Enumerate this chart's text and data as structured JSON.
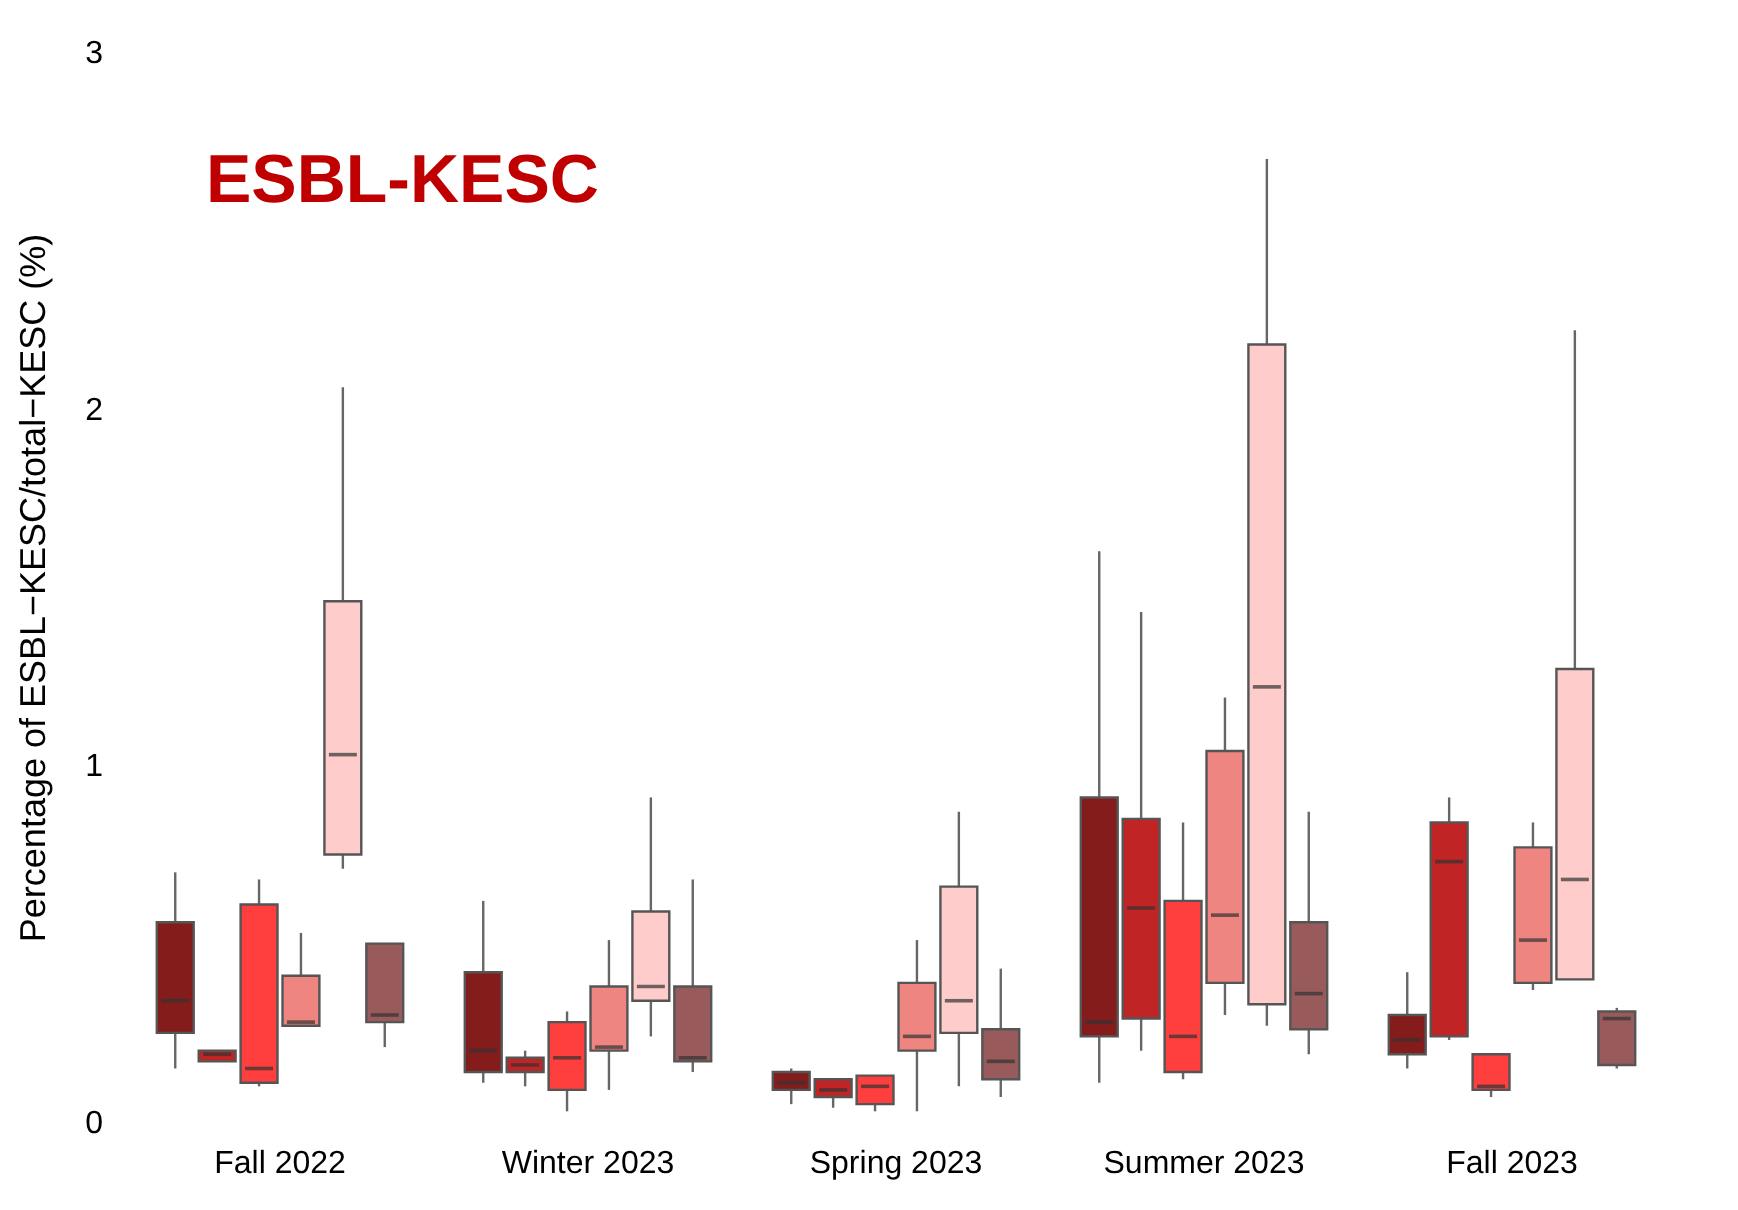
{
  "chart_data": {
    "type": "box",
    "title": "ESBL-KESC",
    "ylabel": "Percentage of ESBL−KESC/total−KESC (%)",
    "categories": [
      "Fall 2022",
      "Winter 2023",
      "Spring 2023",
      "Summer 2023",
      "Fall 2023"
    ],
    "ylim": [
      0,
      3
    ],
    "yticks": [
      0,
      1,
      2,
      3
    ],
    "series": [
      {
        "color": "#841c1c",
        "boxes": [
          {
            "low": 0.15,
            "q1": 0.25,
            "median": 0.34,
            "q3": 0.56,
            "high": 0.7
          },
          {
            "low": 0.11,
            "q1": 0.14,
            "median": 0.2,
            "q3": 0.42,
            "high": 0.62
          },
          {
            "low": 0.05,
            "q1": 0.09,
            "median": 0.11,
            "q3": 0.14,
            "high": 0.15
          },
          {
            "low": 0.11,
            "q1": 0.24,
            "median": 0.28,
            "q3": 0.91,
            "high": 1.6
          },
          {
            "low": 0.15,
            "q1": 0.19,
            "median": 0.23,
            "q3": 0.3,
            "high": 0.42
          }
        ]
      },
      {
        "color": "#c02424",
        "boxes": [
          {
            "low": 0.17,
            "q1": 0.17,
            "median": 0.19,
            "q3": 0.2,
            "high": 0.2
          },
          {
            "low": 0.1,
            "q1": 0.14,
            "median": 0.16,
            "q3": 0.18,
            "high": 0.2
          },
          {
            "low": 0.04,
            "q1": 0.07,
            "median": 0.09,
            "q3": 0.12,
            "high": 0.12
          },
          {
            "low": 0.2,
            "q1": 0.29,
            "median": 0.6,
            "q3": 0.85,
            "high": 1.43
          },
          {
            "low": 0.23,
            "q1": 0.24,
            "median": 0.73,
            "q3": 0.84,
            "high": 0.91
          }
        ]
      },
      {
        "color": "#ff3e3e",
        "boxes": [
          {
            "low": 0.1,
            "q1": 0.11,
            "median": 0.15,
            "q3": 0.61,
            "high": 0.68
          },
          {
            "low": 0.03,
            "q1": 0.09,
            "median": 0.18,
            "q3": 0.28,
            "high": 0.31
          },
          {
            "low": 0.03,
            "q1": 0.05,
            "median": 0.1,
            "q3": 0.13,
            "high": 0.13
          },
          {
            "low": 0.12,
            "q1": 0.14,
            "median": 0.24,
            "q3": 0.62,
            "high": 0.84
          },
          {
            "low": 0.07,
            "q1": 0.09,
            "median": 0.1,
            "q3": 0.19,
            "high": 0.19
          }
        ]
      },
      {
        "color": "#ee8580",
        "boxes": [
          {
            "low": 0.27,
            "q1": 0.27,
            "median": 0.28,
            "q3": 0.41,
            "high": 0.53
          },
          {
            "low": 0.09,
            "q1": 0.2,
            "median": 0.21,
            "q3": 0.38,
            "high": 0.51
          },
          {
            "low": 0.03,
            "q1": 0.2,
            "median": 0.24,
            "q3": 0.39,
            "high": 0.51
          },
          {
            "low": 0.3,
            "q1": 0.39,
            "median": 0.58,
            "q3": 1.04,
            "high": 1.19
          },
          {
            "low": 0.37,
            "q1": 0.39,
            "median": 0.51,
            "q3": 0.77,
            "high": 0.84
          }
        ]
      },
      {
        "color": "#ffcccc",
        "boxes": [
          {
            "low": 0.71,
            "q1": 0.75,
            "median": 1.03,
            "q3": 1.46,
            "high": 2.06
          },
          {
            "low": 0.24,
            "q1": 0.34,
            "median": 0.38,
            "q3": 0.59,
            "high": 0.91
          },
          {
            "low": 0.1,
            "q1": 0.25,
            "median": 0.34,
            "q3": 0.66,
            "high": 0.87
          },
          {
            "low": 0.27,
            "q1": 0.33,
            "median": 1.22,
            "q3": 2.18,
            "high": 2.7
          },
          {
            "low": 0.4,
            "q1": 0.4,
            "median": 0.68,
            "q3": 1.27,
            "high": 2.22
          }
        ]
      },
      {
        "color": "#985a5a",
        "boxes": [
          {
            "low": 0.21,
            "q1": 0.28,
            "median": 0.3,
            "q3": 0.5,
            "high": 0.5
          },
          {
            "low": 0.14,
            "q1": 0.17,
            "median": 0.18,
            "q3": 0.38,
            "high": 0.68
          },
          {
            "low": 0.07,
            "q1": 0.12,
            "median": 0.17,
            "q3": 0.26,
            "high": 0.43
          },
          {
            "low": 0.19,
            "q1": 0.26,
            "median": 0.36,
            "q3": 0.56,
            "high": 0.87
          },
          {
            "low": 0.15,
            "q1": 0.16,
            "median": 0.29,
            "q3": 0.31,
            "high": 0.32
          }
        ]
      }
    ]
  }
}
